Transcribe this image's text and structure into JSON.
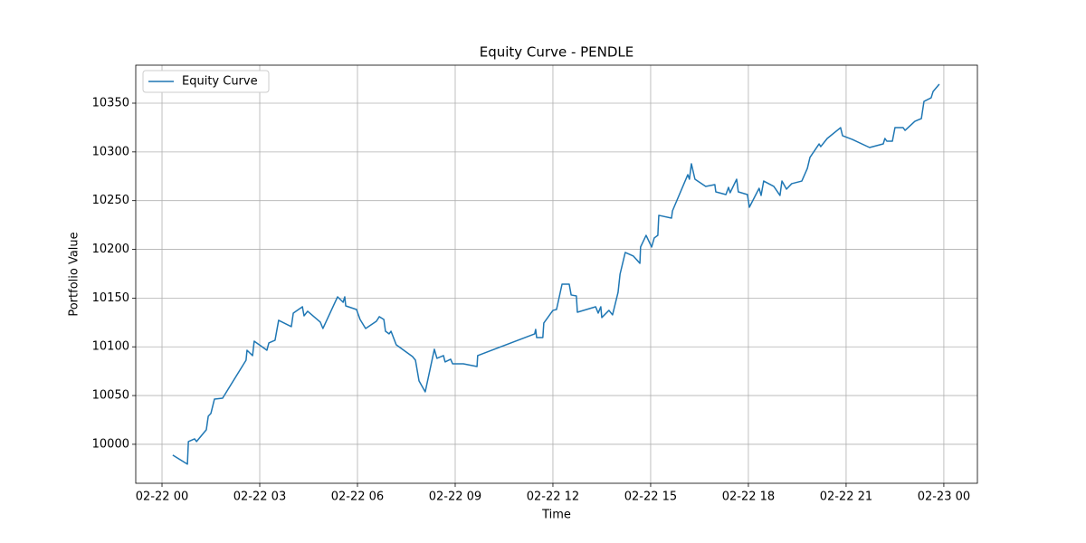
{
  "chart_data": {
    "type": "line",
    "title": "Equity Curve - PENDLE",
    "x_label": "Time",
    "y_label": "Portfolio Value",
    "xlim": [
      -0.806,
      25.03
    ],
    "ylim": [
      9960,
      10389
    ],
    "xticks": [
      {
        "value": 0,
        "label": "02-22 00"
      },
      {
        "value": 3,
        "label": "02-22 03"
      },
      {
        "value": 6,
        "label": "02-22 06"
      },
      {
        "value": 9,
        "label": "02-22 09"
      },
      {
        "value": 12,
        "label": "02-22 12"
      },
      {
        "value": 15,
        "label": "02-22 15"
      },
      {
        "value": 18,
        "label": "02-22 18"
      },
      {
        "value": 21,
        "label": "02-22 21"
      },
      {
        "value": 24,
        "label": "02-23 00"
      }
    ],
    "yticks": [
      10000,
      10050,
      10100,
      10150,
      10200,
      10250,
      10300,
      10350
    ],
    "grid": true,
    "legend": "upper left",
    "x": [
      0.33,
      0.78,
      0.81,
      1.0,
      1.06,
      1.36,
      1.42,
      1.5,
      1.61,
      1.86,
      2.58,
      2.61,
      2.78,
      2.83,
      3.22,
      3.28,
      3.47,
      3.58,
      3.97,
      4.03,
      4.31,
      4.36,
      4.47,
      4.86,
      4.94,
      5.39,
      5.56,
      5.61,
      5.64,
      5.97,
      6.08,
      6.25,
      6.58,
      6.67,
      6.81,
      6.86,
      6.97,
      7.03,
      7.19,
      7.69,
      7.78,
      7.89,
      8.08,
      8.36,
      8.44,
      8.64,
      8.69,
      8.86,
      8.92,
      9.25,
      9.67,
      9.69,
      11.44,
      11.47,
      11.5,
      11.69,
      11.72,
      12.0,
      12.11,
      12.28,
      12.5,
      12.56,
      12.72,
      12.75,
      13.31,
      13.39,
      13.47,
      13.5,
      13.72,
      13.83,
      14.0,
      14.06,
      14.22,
      14.47,
      14.67,
      14.69,
      14.86,
      15.03,
      15.11,
      15.22,
      15.25,
      15.64,
      15.67,
      16.14,
      16.19,
      16.25,
      16.36,
      16.69,
      16.97,
      17.0,
      17.31,
      17.39,
      17.44,
      17.64,
      17.69,
      17.97,
      18.03,
      18.33,
      18.39,
      18.47,
      18.78,
      18.97,
      19.03,
      19.17,
      19.33,
      19.64,
      19.81,
      19.89,
      20.17,
      20.22,
      20.42,
      20.83,
      20.89,
      21.19,
      21.72,
      22.14,
      22.19,
      22.25,
      22.42,
      22.5,
      22.75,
      22.81,
      23.11,
      23.31,
      23.39,
      23.61,
      23.67,
      23.86
    ],
    "series": [
      {
        "name": "Equity Curve",
        "color": "#1f77b4",
        "values": [
          9988.9,
          9979.6,
          10002.8,
          10005.6,
          10002.8,
          10014.9,
          10028.8,
          10031.6,
          10046.4,
          10047.3,
          10086.3,
          10096.5,
          10091,
          10105.8,
          10096.5,
          10104,
          10106.8,
          10127.2,
          10120.7,
          10134.6,
          10141.1,
          10131.8,
          10136.5,
          10125.3,
          10118.8,
          10151.3,
          10145.7,
          10151.3,
          10142,
          10138.3,
          10128.1,
          10118.8,
          10126.2,
          10130.9,
          10128.1,
          10116,
          10113.3,
          10116,
          10102.1,
          10090,
          10086.3,
          10065,
          10053.8,
          10097.5,
          10088.2,
          10091,
          10084.5,
          10087.3,
          10082.6,
          10082.6,
          10079.8,
          10091,
          10113.3,
          10117.9,
          10109.5,
          10109.5,
          10124.4,
          10137.4,
          10138.3,
          10164.3,
          10164.3,
          10153.2,
          10152.2,
          10135.5,
          10141.1,
          10134.6,
          10141.1,
          10130,
          10137.4,
          10132.8,
          10156,
          10174.5,
          10196.8,
          10193.1,
          10185.7,
          10202.4,
          10214.4,
          10202.4,
          10211.7,
          10214.4,
          10234.9,
          10232.1,
          10239.5,
          10276.6,
          10272,
          10287.8,
          10272,
          10264.6,
          10266.4,
          10259,
          10256.2,
          10263.6,
          10258.1,
          10272,
          10259,
          10256.2,
          10243.2,
          10262.7,
          10255.3,
          10270.1,
          10264.6,
          10255.3,
          10270.1,
          10261.8,
          10267.4,
          10270.1,
          10283.1,
          10294.3,
          10308.2,
          10305.4,
          10313.8,
          10324.9,
          10316.6,
          10312.8,
          10304.5,
          10308.2,
          10313.8,
          10311,
          10311,
          10324.9,
          10324.9,
          10322.1,
          10331.4,
          10334.2,
          10351.8,
          10355.5,
          10362,
          10369.5
        ]
      }
    ]
  }
}
